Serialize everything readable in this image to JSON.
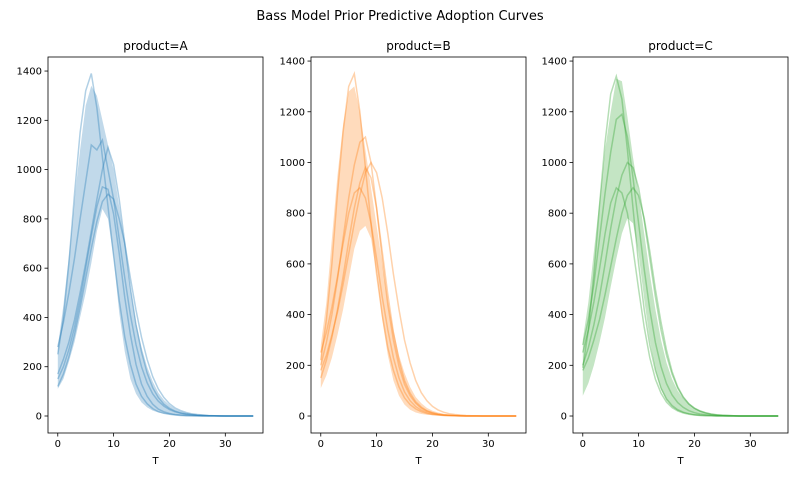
{
  "figure_title": "Bass Model Prior Predictive Adoption Curves",
  "chart_data": [
    {
      "type": "line",
      "title": "product=A",
      "xlabel": "T",
      "ylabel": "",
      "color": "#1f77b4",
      "xlim": [
        -1.75,
        36.75
      ],
      "ylim": [
        -69,
        1457
      ],
      "xticks": [
        0,
        10,
        20,
        30
      ],
      "yticks": [
        0,
        200,
        400,
        600,
        800,
        1000,
        1200,
        1400
      ],
      "grid": false,
      "T": [
        0,
        1,
        2,
        3,
        4,
        5,
        6,
        7,
        8,
        9,
        10,
        11,
        12,
        13,
        14,
        15,
        16,
        17,
        18,
        19,
        20,
        21,
        22,
        23,
        24,
        25,
        26,
        27,
        28,
        29,
        30,
        31,
        32,
        33,
        34,
        35
      ],
      "band": {
        "upper": [
          280,
          450,
          650,
          880,
          1080,
          1260,
          1340,
          1300,
          1200,
          1100,
          1000,
          850,
          700,
          520,
          380,
          280,
          200,
          140,
          95,
          65,
          45,
          30,
          20,
          13,
          9,
          6,
          4,
          3,
          2,
          1,
          1,
          0,
          0,
          0,
          0,
          0
        ],
        "lower": [
          110,
          150,
          220,
          300,
          400,
          500,
          620,
          750,
          840,
          800,
          640,
          420,
          260,
          150,
          90,
          55,
          35,
          22,
          14,
          9,
          6,
          4,
          2,
          1,
          1,
          0,
          0,
          0,
          0,
          0,
          0,
          0,
          0,
          0,
          0,
          0
        ]
      },
      "series": [
        {
          "values": [
            250,
            400,
            620,
            900,
            1150,
            1320,
            1390,
            1250,
            1050,
            850,
            650,
            470,
            320,
            210,
            130,
            80,
            50,
            30,
            18,
            11,
            7,
            4,
            2,
            1,
            1,
            0,
            0,
            0,
            0,
            0,
            0,
            0,
            0,
            0,
            0,
            0
          ]
        },
        {
          "values": [
            280,
            380,
            500,
            640,
            800,
            950,
            1100,
            1080,
            1120,
            1000,
            880,
            720,
            560,
            410,
            290,
            200,
            135,
            90,
            60,
            40,
            26,
            17,
            11,
            7,
            5,
            3,
            2,
            1,
            1,
            0,
            0,
            0,
            0,
            0,
            0,
            0
          ]
        },
        {
          "values": [
            170,
            230,
            300,
            390,
            500,
            620,
            750,
            880,
            1000,
            1090,
            1020,
            880,
            700,
            520,
            370,
            260,
            175,
            115,
            75,
            48,
            31,
            20,
            13,
            8,
            5,
            3,
            2,
            1,
            1,
            0,
            0,
            0,
            0,
            0,
            0,
            0
          ]
        },
        {
          "values": [
            150,
            200,
            270,
            360,
            470,
            600,
            730,
            850,
            930,
            920,
            820,
            660,
            480,
            330,
            210,
            130,
            80,
            48,
            28,
            17,
            10,
            6,
            4,
            2,
            1,
            1,
            0,
            0,
            0,
            0,
            0,
            0,
            0,
            0,
            0,
            0
          ]
        },
        {
          "values": [
            120,
            170,
            240,
            330,
            440,
            560,
            680,
            790,
            870,
            900,
            880,
            800,
            700,
            560,
            430,
            320,
            230,
            160,
            110,
            75,
            50,
            33,
            22,
            14,
            9,
            6,
            4,
            2,
            1,
            1,
            0,
            0,
            0,
            0,
            0,
            0
          ]
        }
      ]
    },
    {
      "type": "line",
      "title": "product=B",
      "xlabel": "T",
      "ylabel": "",
      "color": "#ff7f0e",
      "xlim": [
        -1.75,
        36.75
      ],
      "ylim": [
        -67,
        1416
      ],
      "xticks": [
        0,
        10,
        20,
        30
      ],
      "yticks": [
        0,
        200,
        400,
        600,
        800,
        1000,
        1200,
        1400
      ],
      "grid": false,
      "T": [
        0,
        1,
        2,
        3,
        4,
        5,
        6,
        7,
        8,
        9,
        10,
        11,
        12,
        13,
        14,
        15,
        16,
        17,
        18,
        19,
        20,
        21,
        22,
        23,
        24,
        25,
        26,
        27,
        28,
        29,
        30,
        31,
        32,
        33,
        34,
        35
      ],
      "band": {
        "upper": [
          280,
          450,
          700,
          950,
          1150,
          1280,
          1300,
          1200,
          1050,
          900,
          750,
          600,
          460,
          340,
          240,
          170,
          115,
          75,
          50,
          32,
          21,
          14,
          9,
          6,
          4,
          2,
          1,
          1,
          0,
          0,
          0,
          0,
          0,
          0,
          0,
          0
        ],
        "lower": [
          110,
          160,
          230,
          320,
          420,
          540,
          660,
          730,
          750,
          700,
          560,
          380,
          240,
          140,
          80,
          45,
          25,
          14,
          8,
          5,
          3,
          2,
          1,
          0,
          0,
          0,
          0,
          0,
          0,
          0,
          0,
          0,
          0,
          0,
          0,
          0
        ]
      },
      "series": [
        {
          "values": [
            220,
            380,
            600,
            880,
            1120,
            1300,
            1350,
            1200,
            980,
            760,
            560,
            400,
            270,
            180,
            115,
            72,
            45,
            28,
            17,
            10,
            6,
            4,
            2,
            1,
            1,
            0,
            0,
            0,
            0,
            0,
            0,
            0,
            0,
            0,
            0,
            0
          ]
        },
        {
          "values": [
            200,
            290,
            400,
            540,
            700,
            860,
            990,
            1080,
            1100,
            1000,
            820,
            620,
            440,
            300,
            195,
            125,
            80,
            50,
            31,
            19,
            12,
            7,
            4,
            3,
            2,
            1,
            0,
            0,
            0,
            0,
            0,
            0,
            0,
            0,
            0,
            0
          ]
        },
        {
          "values": [
            150,
            220,
            310,
            420,
            550,
            690,
            820,
            920,
            980,
            940,
            820,
            650,
            480,
            330,
            220,
            140,
            90,
            56,
            35,
            21,
            13,
            8,
            5,
            3,
            2,
            1,
            0,
            0,
            0,
            0,
            0,
            0,
            0,
            0,
            0,
            0
          ]
        },
        {
          "values": [
            250,
            330,
            430,
            550,
            680,
            800,
            880,
            900,
            860,
            760,
            620,
            470,
            340,
            230,
            150,
            95,
            60,
            37,
            23,
            14,
            8,
            5,
            3,
            2,
            1,
            0,
            0,
            0,
            0,
            0,
            0,
            0,
            0,
            0,
            0,
            0
          ]
        },
        {
          "values": [
            180,
            240,
            320,
            410,
            520,
            640,
            760,
            870,
            960,
            1000,
            960,
            860,
            720,
            560,
            420,
            300,
            210,
            140,
            92,
            60,
            38,
            24,
            15,
            9,
            6,
            4,
            2,
            1,
            1,
            0,
            0,
            0,
            0,
            0,
            0,
            0
          ]
        }
      ]
    },
    {
      "type": "line",
      "title": "product=C",
      "xlabel": "T",
      "ylabel": "",
      "color": "#2ca02c",
      "xlim": [
        -1.75,
        36.75
      ],
      "ylim": [
        -67,
        1416
      ],
      "xticks": [
        0,
        10,
        20,
        30
      ],
      "yticks": [
        0,
        200,
        400,
        600,
        800,
        1000,
        1200,
        1400
      ],
      "grid": false,
      "T": [
        0,
        1,
        2,
        3,
        4,
        5,
        6,
        7,
        8,
        9,
        10,
        11,
        12,
        13,
        14,
        15,
        16,
        17,
        18,
        19,
        20,
        21,
        22,
        23,
        24,
        25,
        26,
        27,
        28,
        29,
        30,
        31,
        32,
        33,
        34,
        35
      ],
      "band": {
        "upper": [
          300,
          450,
          650,
          850,
          1050,
          1200,
          1330,
          1320,
          1180,
          1020,
          880,
          720,
          560,
          420,
          300,
          210,
          145,
          100,
          68,
          46,
          30,
          20,
          13,
          8,
          5,
          3,
          2,
          1,
          1,
          0,
          0,
          0,
          0,
          0,
          0,
          0
        ],
        "lower": [
          80,
          130,
          200,
          290,
          390,
          510,
          620,
          720,
          780,
          760,
          640,
          460,
          300,
          180,
          105,
          60,
          35,
          20,
          12,
          7,
          4,
          2,
          1,
          1,
          0,
          0,
          0,
          0,
          0,
          0,
          0,
          0,
          0,
          0,
          0,
          0
        ]
      },
      "series": [
        {
          "values": [
            190,
            340,
            560,
            830,
            1080,
            1270,
            1340,
            1250,
            1050,
            820,
            600,
            420,
            280,
            180,
            110,
            68,
            41,
            25,
            15,
            9,
            5,
            3,
            2,
            1,
            0,
            0,
            0,
            0,
            0,
            0,
            0,
            0,
            0,
            0,
            0,
            0
          ]
        },
        {
          "values": [
            280,
            380,
            520,
            700,
            880,
            1040,
            1170,
            1190,
            1100,
            940,
            760,
            580,
            420,
            290,
            195,
            128,
            83,
            53,
            34,
            21,
            13,
            8,
            5,
            3,
            2,
            1,
            0,
            0,
            0,
            0,
            0,
            0,
            0,
            0,
            0,
            0
          ]
        },
        {
          "values": [
            200,
            270,
            360,
            470,
            600,
            740,
            860,
            950,
            1000,
            980,
            900,
            770,
            620,
            470,
            340,
            240,
            165,
            110,
            72,
            47,
            30,
            19,
            12,
            7,
            4,
            3,
            2,
            1,
            0,
            0,
            0,
            0,
            0,
            0,
            0,
            0
          ]
        },
        {
          "values": [
            180,
            230,
            300,
            380,
            480,
            590,
            700,
            800,
            870,
            900,
            870,
            780,
            650,
            500,
            370,
            260,
            175,
            115,
            75,
            48,
            31,
            20,
            13,
            8,
            5,
            3,
            2,
            1,
            0,
            0,
            0,
            0,
            0,
            0,
            0,
            0
          ]
        },
        {
          "values": [
            250,
            340,
            450,
            580,
            720,
            840,
            900,
            880,
            800,
            660,
            500,
            350,
            230,
            145,
            90,
            55,
            33,
            20,
            12,
            7,
            4,
            2,
            1,
            1,
            0,
            0,
            0,
            0,
            0,
            0,
            0,
            0,
            0,
            0,
            0,
            0
          ]
        }
      ]
    }
  ]
}
